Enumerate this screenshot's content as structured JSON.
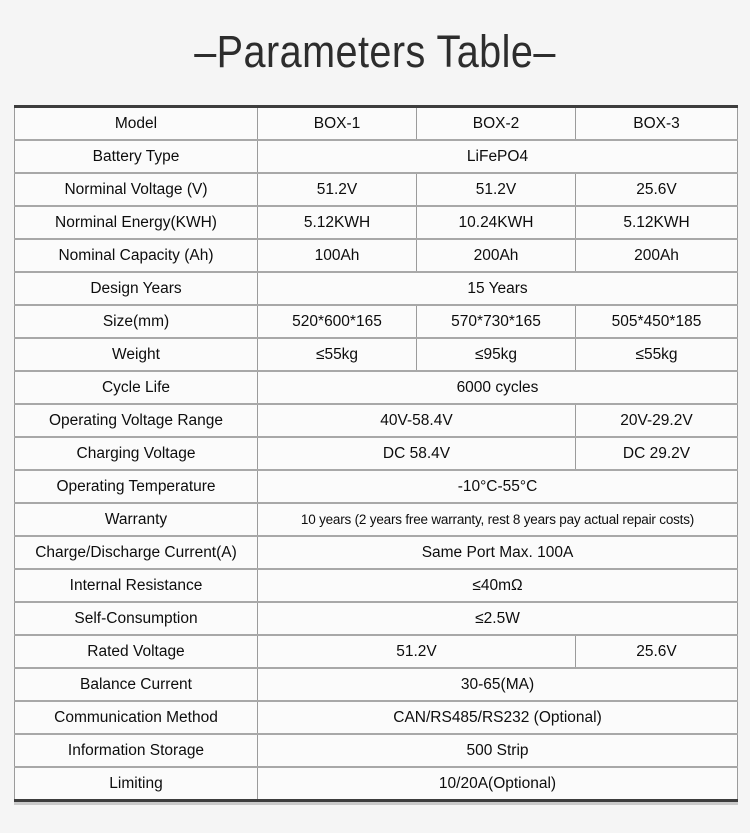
{
  "page": {
    "title": "–Parameters Table–"
  },
  "table": {
    "columns": [
      "Model",
      "BOX-1",
      "BOX-2",
      "BOX-3"
    ],
    "rows": [
      {
        "label": "Model",
        "cells": [
          {
            "text": "BOX-1",
            "span": 1
          },
          {
            "text": "BOX-2",
            "span": 1
          },
          {
            "text": "BOX-3",
            "span": 1
          }
        ]
      },
      {
        "label": "Battery Type",
        "cells": [
          {
            "text": "LiFePO4",
            "span": 3
          }
        ]
      },
      {
        "label": "Norminal Voltage (V)",
        "cells": [
          {
            "text": "51.2V",
            "span": 1
          },
          {
            "text": "51.2V",
            "span": 1
          },
          {
            "text": "25.6V",
            "span": 1
          }
        ]
      },
      {
        "label": "Norminal Energy(KWH)",
        "cells": [
          {
            "text": "5.12KWH",
            "span": 1
          },
          {
            "text": "10.24KWH",
            "span": 1
          },
          {
            "text": "5.12KWH",
            "span": 1
          }
        ]
      },
      {
        "label": "Nominal Capacity (Ah)",
        "cells": [
          {
            "text": "100Ah",
            "span": 1
          },
          {
            "text": "200Ah",
            "span": 1
          },
          {
            "text": "200Ah",
            "span": 1
          }
        ]
      },
      {
        "label": "Design Years",
        "cells": [
          {
            "text": "15 Years",
            "span": 3
          }
        ]
      },
      {
        "label": "Size(mm)",
        "cells": [
          {
            "text": "520*600*165",
            "span": 1
          },
          {
            "text": "570*730*165",
            "span": 1
          },
          {
            "text": "505*450*185",
            "span": 1
          }
        ]
      },
      {
        "label": "Weight",
        "cells": [
          {
            "text": "≤55kg",
            "span": 1
          },
          {
            "text": "≤95kg",
            "span": 1
          },
          {
            "text": "≤55kg",
            "span": 1
          }
        ]
      },
      {
        "label": "Cycle Life",
        "cells": [
          {
            "text": "6000 cycles",
            "span": 3
          }
        ]
      },
      {
        "label": "Operating Voltage Range",
        "cells": [
          {
            "text": "40V-58.4V",
            "span": 2
          },
          {
            "text": "20V-29.2V",
            "span": 1
          }
        ]
      },
      {
        "label": "Charging Voltage",
        "cells": [
          {
            "text": "DC 58.4V",
            "span": 2
          },
          {
            "text": "DC 29.2V",
            "span": 1
          }
        ]
      },
      {
        "label": "Operating Temperature",
        "cells": [
          {
            "text": "-10°C-55°C",
            "span": 3
          }
        ]
      },
      {
        "label": "Warranty",
        "cells": [
          {
            "text": "10 years (2 years free warranty, rest 8 years pay actual repair costs)",
            "span": 3
          }
        ]
      },
      {
        "label": "Charge/Discharge Current(A)",
        "cells": [
          {
            "text": "Same Port Max. 100A",
            "span": 3
          }
        ]
      },
      {
        "label": "Internal Resistance",
        "cells": [
          {
            "text": "≤40mΩ",
            "span": 3
          }
        ]
      },
      {
        "label": "Self-Consumption",
        "cells": [
          {
            "text": "≤2.5W",
            "span": 3
          }
        ]
      },
      {
        "label": "Rated Voltage",
        "cells": [
          {
            "text": "51.2V",
            "span": 2
          },
          {
            "text": "25.6V",
            "span": 1
          }
        ]
      },
      {
        "label": "Balance Current",
        "cells": [
          {
            "text": "30-65(MA)",
            "span": 3
          }
        ]
      },
      {
        "label": "Communication Method",
        "cells": [
          {
            "text": "CAN/RS485/RS232 (Optional)",
            "span": 3
          }
        ]
      },
      {
        "label": "Information Storage",
        "cells": [
          {
            "text": "500 Strip",
            "span": 3
          }
        ]
      },
      {
        "label": "Limiting",
        "cells": [
          {
            "text": "10/20A(Optional)",
            "span": 3
          }
        ]
      }
    ]
  }
}
